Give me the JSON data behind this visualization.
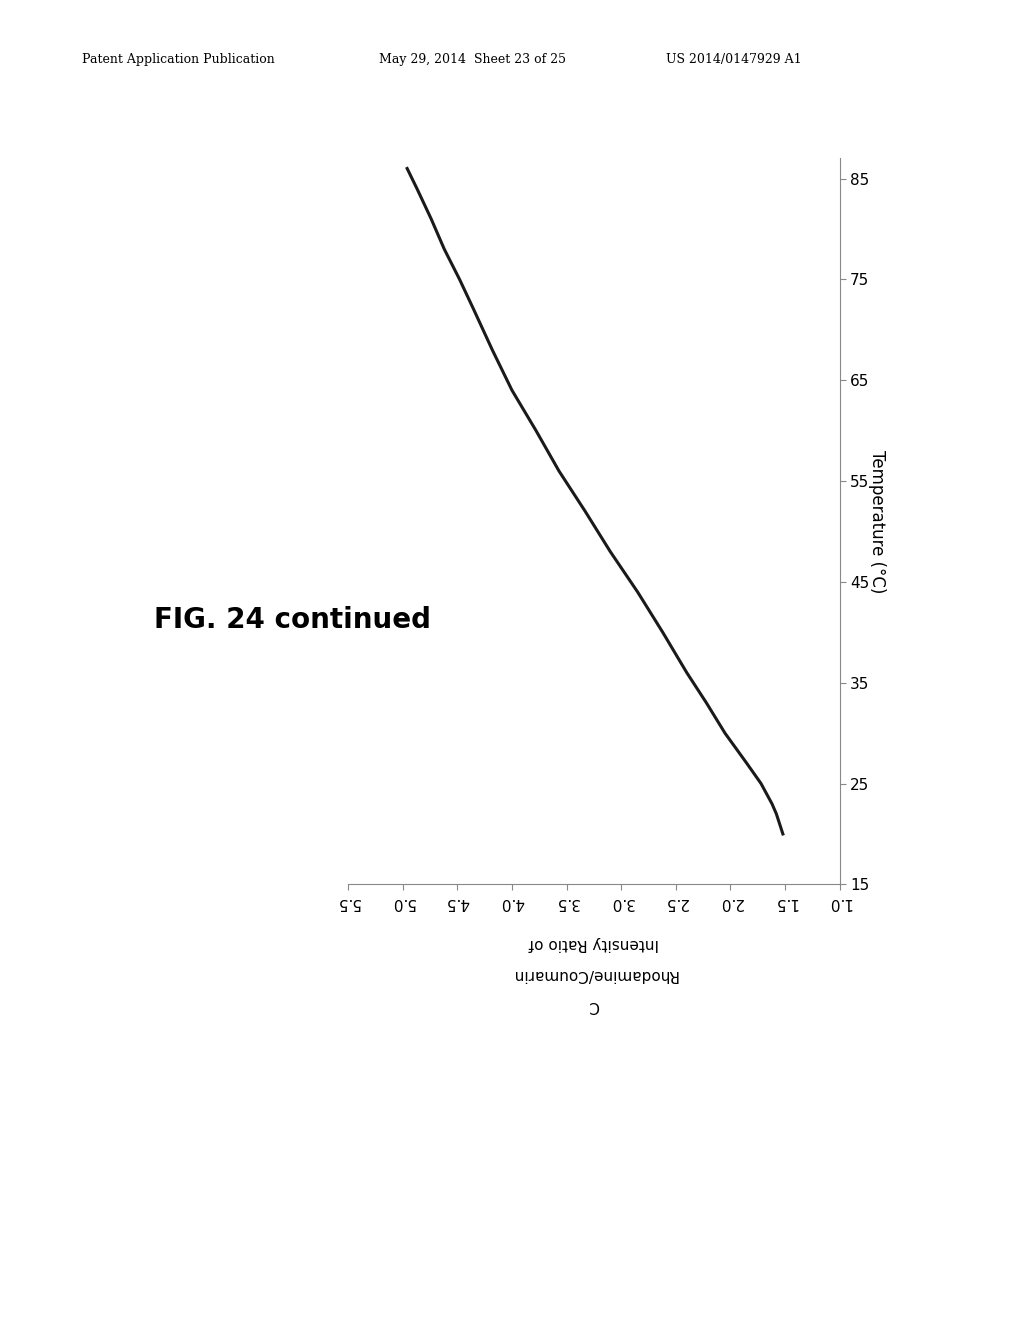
{
  "header_left": "Patent Application Publication",
  "header_mid": "May 29, 2014  Sheet 23 of 25",
  "header_right": "US 2014/0147929 A1",
  "fig_label": "FIG. 24 continued",
  "xlabel_line1": "Intensity Ratio of",
  "xlabel_line2": "Rhodamine/Coumarin",
  "xlabel_line3": "C",
  "ylabel": "Temperature (°C)",
  "x_ticks": [
    5.5,
    5.0,
    4.5,
    4.0,
    3.5,
    3.0,
    2.5,
    2.0,
    1.5,
    1.0
  ],
  "y_ticks": [
    15,
    25,
    35,
    45,
    55,
    65,
    75,
    85
  ],
  "xlim_left": 5.5,
  "xlim_right": 1.0,
  "ylim_bottom": 15,
  "ylim_top": 87,
  "curve_temperature": [
    20,
    21,
    22,
    23,
    24,
    25,
    27,
    30,
    33,
    36,
    40,
    44,
    48,
    52,
    56,
    60,
    64,
    68,
    72,
    75,
    78,
    81,
    84,
    86
  ],
  "curve_ratio": [
    1.52,
    1.55,
    1.58,
    1.62,
    1.67,
    1.72,
    1.85,
    2.05,
    2.22,
    2.4,
    2.62,
    2.85,
    3.1,
    3.33,
    3.57,
    3.78,
    4.0,
    4.18,
    4.35,
    4.48,
    4.62,
    4.74,
    4.87,
    4.96
  ],
  "line_color": "#1a1a1a",
  "line_width": 2.2,
  "background_color": "#ffffff",
  "axis_color": "#888888",
  "tick_color": "#888888",
  "header_fontsize": 9,
  "tick_fontsize": 11,
  "ylabel_fontsize": 12,
  "figlabel_fontsize": 20
}
